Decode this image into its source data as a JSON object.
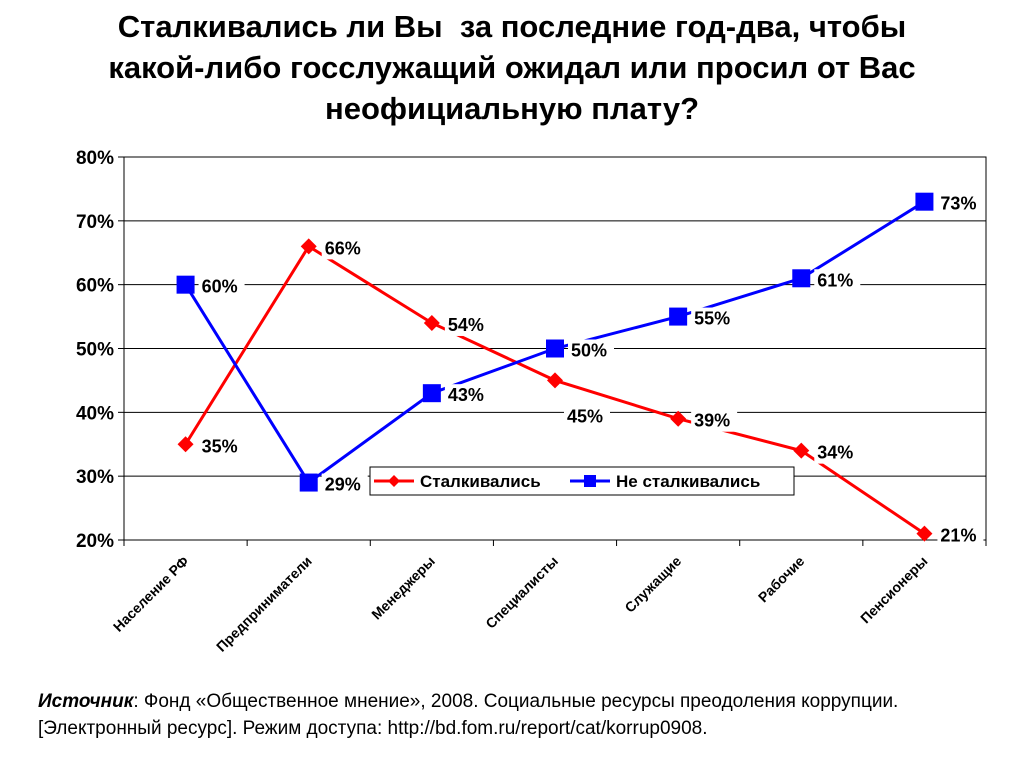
{
  "title_lines": [
    "Сталкивались ли Вы  за последние год-два, чтобы",
    "какой-либо госслужащий ожидал или просил от Вас",
    "неофициальную плату?"
  ],
  "chart_data": {
    "type": "line",
    "categories": [
      "Население РФ",
      "Предприниматели",
      "Менеджеры",
      "Специалисты",
      "Служащие",
      "Рабочие",
      "Пенсионеры"
    ],
    "series": [
      {
        "name": "Сталкивались",
        "values": [
          35,
          66,
          54,
          45,
          39,
          34,
          21
        ],
        "labels": [
          "35%",
          "66%",
          "54%",
          "45%",
          "39%",
          "34%",
          "21%"
        ],
        "color": "#ff0000",
        "marker": "diamond"
      },
      {
        "name": "Не сталкивались",
        "values": [
          60,
          29,
          43,
          50,
          55,
          61,
          73
        ],
        "labels": [
          "60%",
          "29%",
          "43%",
          "50%",
          "55%",
          "61%",
          "73%"
        ],
        "color": "#0000ff",
        "marker": "square"
      }
    ],
    "ylim": [
      20,
      80
    ],
    "yticks": [
      20,
      30,
      40,
      50,
      60,
      70,
      80
    ],
    "ytick_labels": [
      "20%",
      "30%",
      "40%",
      "50%",
      "60%",
      "70%",
      "80%"
    ],
    "grid": true,
    "legend_position": "bottom-center"
  },
  "source": {
    "label": "Источник",
    "text": ": Фонд «Общественное мнение», 2008. Социальные ресурсы преодоления коррупции. [Электронный ресурс]. Режим доступа: http://bd.fom.ru/report/cat/korrup0908."
  }
}
